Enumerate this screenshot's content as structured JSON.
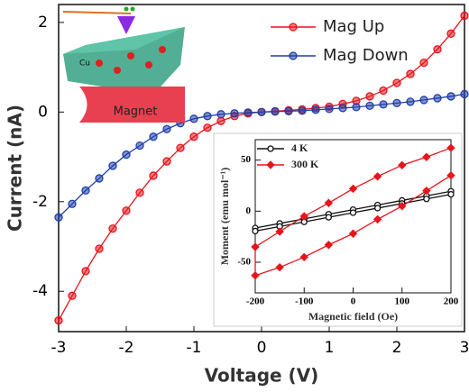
{
  "chart_data": [
    {
      "type": "line",
      "xlabel": "Voltage (V)",
      "ylabel": "Current (nA)",
      "x": [
        -3,
        -2.8,
        -2.6,
        -2.4,
        -2.2,
        -2,
        -1.8,
        -1.6,
        -1.4,
        -1.2,
        -1,
        -0.8,
        -0.6,
        -0.4,
        -0.2,
        0,
        0.2,
        0.4,
        0.6,
        0.8,
        1,
        1.2,
        1.4,
        1.6,
        1.8,
        2,
        2.2,
        2.4,
        2.6,
        2.8,
        3
      ],
      "series": [
        {
          "name": "Mag Up",
          "color": "#e8141c",
          "marker": "circle",
          "values": [
            -4.65,
            -4.1,
            -3.55,
            -3.05,
            -2.6,
            -2.2,
            -1.8,
            -1.42,
            -1.1,
            -0.8,
            -0.55,
            -0.35,
            -0.2,
            -0.09,
            -0.03,
            0,
            0.02,
            0.04,
            0.06,
            0.09,
            0.12,
            0.18,
            0.25,
            0.35,
            0.48,
            0.65,
            0.85,
            1.1,
            1.4,
            1.75,
            2.15
          ]
        },
        {
          "name": "Mag Down",
          "color": "#1f3fa8",
          "marker": "circle",
          "values": [
            -2.35,
            -2.05,
            -1.75,
            -1.48,
            -1.2,
            -0.95,
            -0.75,
            -0.55,
            -0.38,
            -0.25,
            -0.15,
            -0.09,
            -0.05,
            -0.03,
            -0.01,
            0,
            0.01,
            0.02,
            0.03,
            0.05,
            0.07,
            0.09,
            0.11,
            0.14,
            0.17,
            0.2,
            0.23,
            0.27,
            0.31,
            0.35,
            0.4
          ]
        }
      ],
      "xlim": [
        -3,
        3
      ],
      "ylim": [
        -4.9,
        2.4
      ],
      "xticks": [
        -3,
        -2,
        -1,
        0,
        1,
        2,
        3
      ],
      "yticks": [
        -4,
        -2,
        0,
        2
      ],
      "grid": false
    },
    {
      "type": "line",
      "xlabel": "Magnetic field (Oe)",
      "ylabel": "Moment (emu mol⁻¹)",
      "series": [
        {
          "name": "4 K",
          "color": "#111111",
          "marker": "circle",
          "x": [
            200,
            150,
            100,
            50,
            0,
            -50,
            -100,
            -150,
            -200,
            -200,
            -150,
            -100,
            -50,
            0,
            50,
            100,
            150,
            200
          ],
          "values": [
            19.5,
            15,
            10.5,
            6,
            1.5,
            -3,
            -7.5,
            -12,
            -16.5,
            -19.5,
            -15,
            -10.5,
            -6,
            -1.5,
            3,
            7.5,
            12,
            16.5
          ]
        },
        {
          "name": "300 K",
          "color": "#e8141c",
          "marker": "diamond",
          "x": [
            200,
            150,
            100,
            50,
            0,
            -50,
            -100,
            -150,
            -200,
            -200,
            -150,
            -100,
            -50,
            0,
            50,
            100,
            150,
            200
          ],
          "values": [
            62,
            53,
            45,
            34,
            22,
            8,
            -5,
            -20,
            -35,
            -63,
            -55,
            -45,
            -33,
            -22,
            -8,
            5,
            20,
            35
          ]
        }
      ],
      "xlim": [
        -200,
        200
      ],
      "ylim": [
        -80,
        70
      ],
      "xticks": [
        -200,
        -100,
        0,
        100,
        200
      ],
      "yticks": [
        -50,
        0,
        50
      ],
      "grid": false
    }
  ],
  "illustration": {
    "labels": [
      "Cu",
      "Magnet"
    ]
  }
}
